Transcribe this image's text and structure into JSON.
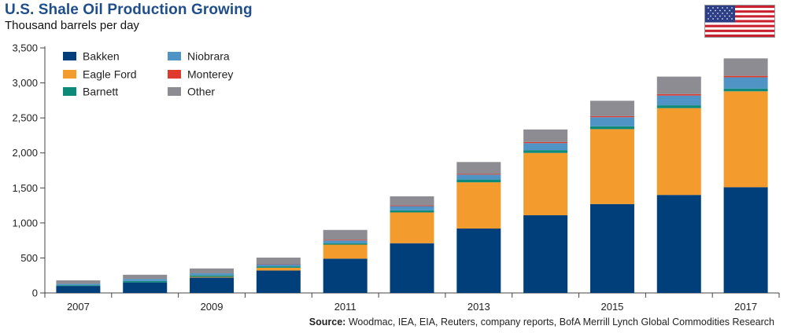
{
  "header": {
    "title": "U.S. Shale Oil Production Growing",
    "subtitle": "Thousand barrels per day"
  },
  "source": {
    "label": "Source:",
    "text": "Woodmac, IEA, EIA, Reuters, company reports, BofA Merrill Lynch Global Commodities Research"
  },
  "flag": {
    "icon": "us-flag-icon"
  },
  "chart_data": {
    "type": "bar",
    "stacked": true,
    "title": "U.S. Shale Oil Production Growing",
    "subtitle": "Thousand barrels per day",
    "xlabel": "",
    "ylabel": "",
    "categories": [
      "2007",
      "2008",
      "2009",
      "2010",
      "2011",
      "2012",
      "2013",
      "2014",
      "2015",
      "2016",
      "2017"
    ],
    "x_tick_labels": [
      "2007",
      "",
      "2009",
      "",
      "2011",
      "",
      "2013",
      "",
      "2015",
      "",
      "2017"
    ],
    "y_ticks": [
      "0",
      "500",
      "1,000",
      "1,500",
      "2,000",
      "2,500",
      "3,000",
      "3,500"
    ],
    "y_tick_values": [
      0,
      500,
      1000,
      1500,
      2000,
      2500,
      3000,
      3500
    ],
    "ylim": [
      0,
      3500
    ],
    "grid": false,
    "legend_position": "top-left",
    "series": [
      {
        "name": "Bakken",
        "color": "#003f7a",
        "values": [
          100,
          150,
          220,
          320,
          490,
          710,
          920,
          1110,
          1270,
          1400,
          1510
        ]
      },
      {
        "name": "Eagle Ford",
        "color": "#f39c2d",
        "values": [
          0,
          0,
          10,
          40,
          200,
          440,
          660,
          890,
          1070,
          1240,
          1370
        ]
      },
      {
        "name": "Barnett",
        "color": "#0e8a7a",
        "values": [
          10,
          20,
          20,
          20,
          20,
          30,
          40,
          40,
          40,
          40,
          40
        ]
      },
      {
        "name": "Niobrara",
        "color": "#4f94c4",
        "values": [
          20,
          30,
          30,
          30,
          40,
          60,
          70,
          100,
          130,
          140,
          160
        ]
      },
      {
        "name": "Monterey",
        "color": "#e03a2e",
        "values": [
          0,
          0,
          0,
          5,
          10,
          10,
          10,
          15,
          15,
          20,
          20
        ]
      },
      {
        "name": "Other",
        "color": "#8c8c92",
        "values": [
          50,
          60,
          70,
          90,
          140,
          130,
          170,
          180,
          220,
          250,
          250
        ]
      }
    ]
  }
}
